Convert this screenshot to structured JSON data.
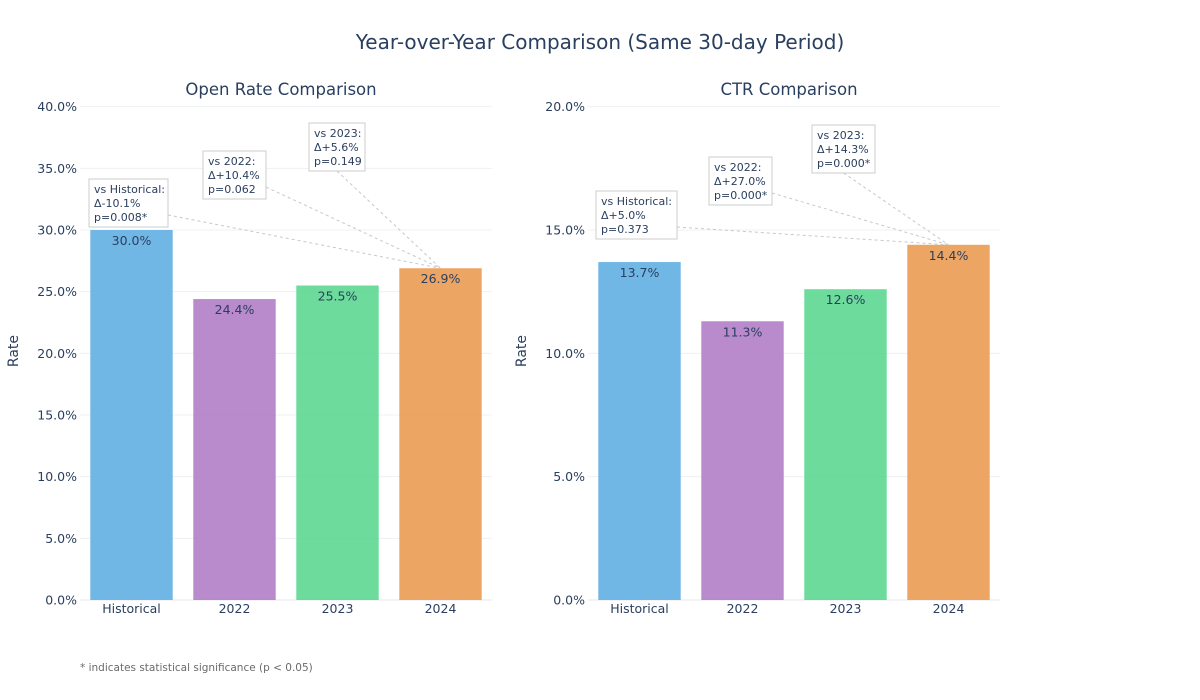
{
  "title": "Year-over-Year Comparison (Same 30-day Period)",
  "footnote": "* indicates statistical significance (p < 0.05)",
  "colors": [
    "#5dade2",
    "#af7ac5",
    "#58d68d",
    "#eb984e"
  ],
  "chart_data": [
    {
      "type": "bar",
      "title": "Open Rate Comparison",
      "ylabel": "Rate",
      "categories": [
        "Historical",
        "2022",
        "2023",
        "2024"
      ],
      "values": [
        0.3,
        0.244,
        0.255,
        0.269
      ],
      "value_labels": [
        "30.0%",
        "24.4%",
        "25.5%",
        "26.9%"
      ],
      "ylim": [
        0,
        0.42
      ],
      "yticks": [
        0,
        0.05,
        0.1,
        0.15,
        0.2,
        0.25,
        0.3,
        0.35,
        0.4
      ],
      "ytick_labels": [
        "0.0%",
        "5.0%",
        "10.0%",
        "15.0%",
        "20.0%",
        "25.0%",
        "30.0%",
        "35.0%",
        "40.0%"
      ],
      "annotations": [
        {
          "lines": [
            "vs Historical:",
            "Δ-10.1%",
            "p=0.008*"
          ]
        },
        {
          "lines": [
            "vs 2022:",
            "Δ+10.4%",
            "p=0.062"
          ]
        },
        {
          "lines": [
            "vs 2023:",
            "Δ+5.6%",
            "p=0.149"
          ]
        }
      ]
    },
    {
      "type": "bar",
      "title": "CTR Comparison",
      "ylabel": "Rate",
      "categories": [
        "Historical",
        "2022",
        "2023",
        "2024"
      ],
      "values": [
        0.137,
        0.113,
        0.126,
        0.144
      ],
      "value_labels": [
        "13.7%",
        "11.3%",
        "12.6%",
        "14.4%"
      ],
      "ylim": [
        0,
        0.21
      ],
      "yticks": [
        0,
        0.05,
        0.1,
        0.15,
        0.2
      ],
      "ytick_labels": [
        "0.0%",
        "5.0%",
        "10.0%",
        "15.0%",
        "20.0%"
      ],
      "annotations": [
        {
          "lines": [
            "vs Historical:",
            "Δ+5.0%",
            "p=0.373"
          ]
        },
        {
          "lines": [
            "vs 2022:",
            "Δ+27.0%",
            "p=0.000*"
          ]
        },
        {
          "lines": [
            "vs 2023:",
            "Δ+14.3%",
            "p=0.000*"
          ]
        }
      ]
    }
  ]
}
